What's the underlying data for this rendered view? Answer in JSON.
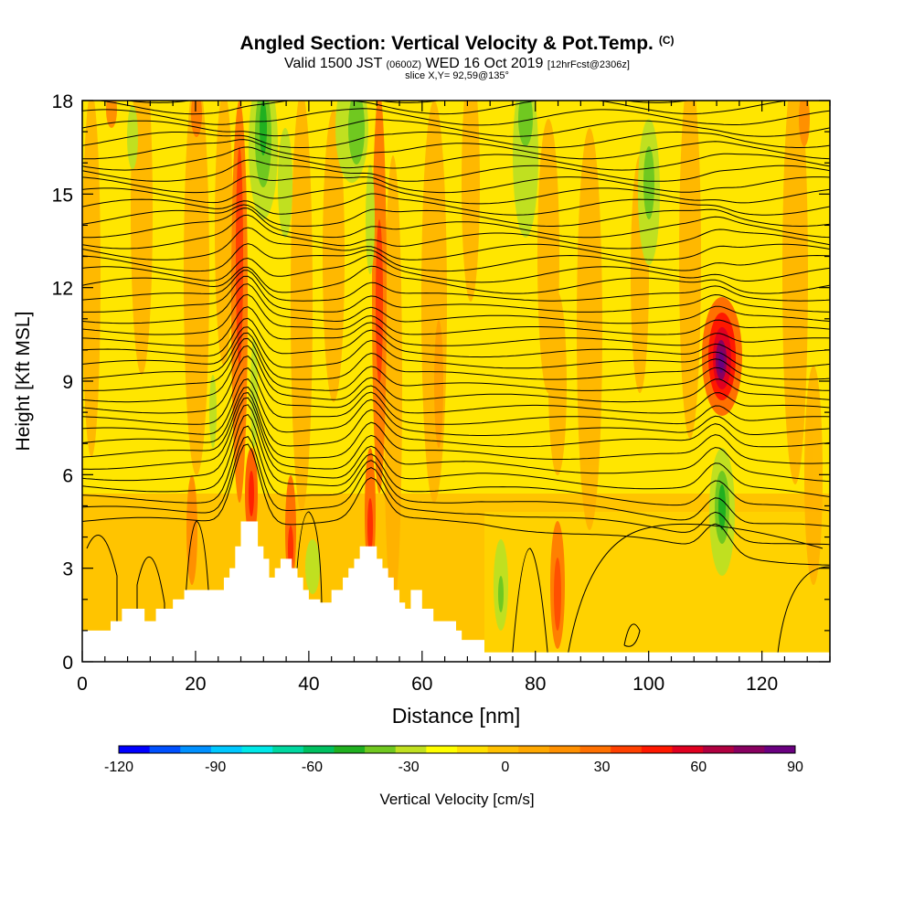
{
  "header": {
    "title": "Angled Section: Vertical Velocity & Pot.Temp.",
    "title_tag": "(C)",
    "valid_prefix": "Valid 1500 JST",
    "valid_utc": "(0600Z)",
    "valid_date": "WED 16 Oct 2019",
    "forecast": "[12hrFcst@2306z]",
    "slice": "slice X,Y= 92,59@135°"
  },
  "chart_data": {
    "type": "heatmap",
    "xlabel": "Distance [nm]",
    "ylabel": "Height [Kft MSL]",
    "xlim": [
      0,
      132
    ],
    "ylim": [
      0,
      18
    ],
    "x_ticks": [
      0,
      20,
      40,
      60,
      80,
      100,
      120
    ],
    "y_ticks": [
      0,
      3,
      6,
      9,
      12,
      15,
      18
    ],
    "colorbar": {
      "label": "Vertical Velocity [cm/s]",
      "min": -120,
      "max": 90,
      "tick_values": [
        -120,
        -90,
        -60,
        -30,
        0,
        30,
        60,
        90
      ],
      "tick_labels": [
        "-120",
        "-90",
        "-60",
        "-30",
        "0",
        "30",
        "60",
        "90"
      ],
      "colors": [
        "#0000ff",
        "#0050ff",
        "#0090ff",
        "#00c8ff",
        "#00e8e8",
        "#00d8a0",
        "#00c060",
        "#20b020",
        "#70c820",
        "#c0e020",
        "#ffff00",
        "#ffe000",
        "#ffc000",
        "#ffa800",
        "#ff9000",
        "#ff7000",
        "#ff4000",
        "#ff1800",
        "#e00020",
        "#b00040",
        "#880060",
        "#6a0080"
      ]
    },
    "terrain_kft": [
      [
        0,
        1.0
      ],
      [
        5,
        1.0
      ],
      [
        5,
        1.3
      ],
      [
        7,
        1.3
      ],
      [
        7,
        1.7
      ],
      [
        11,
        1.7
      ],
      [
        11,
        1.3
      ],
      [
        13,
        1.3
      ],
      [
        13,
        1.7
      ],
      [
        16,
        1.7
      ],
      [
        16,
        2.0
      ],
      [
        18,
        2.0
      ],
      [
        18,
        2.3
      ],
      [
        25,
        2.3
      ],
      [
        25,
        2.7
      ],
      [
        26,
        2.7
      ],
      [
        26,
        3.0
      ],
      [
        27,
        3.0
      ],
      [
        27,
        3.7
      ],
      [
        28,
        3.7
      ],
      [
        28,
        4.5
      ],
      [
        31,
        4.5
      ],
      [
        31,
        3.7
      ],
      [
        32,
        3.7
      ],
      [
        32,
        3.3
      ],
      [
        33,
        3.3
      ],
      [
        33,
        2.7
      ],
      [
        34,
        2.7
      ],
      [
        34,
        3.0
      ],
      [
        35,
        3.0
      ],
      [
        35,
        3.3
      ],
      [
        37,
        3.3
      ],
      [
        37,
        3.0
      ],
      [
        38,
        3.0
      ],
      [
        38,
        2.7
      ],
      [
        39,
        2.7
      ],
      [
        39,
        2.3
      ],
      [
        40,
        2.3
      ],
      [
        40,
        2.0
      ],
      [
        42,
        2.0
      ],
      [
        42,
        1.9
      ],
      [
        44,
        1.9
      ],
      [
        44,
        2.3
      ],
      [
        46,
        2.3
      ],
      [
        46,
        2.7
      ],
      [
        47,
        2.7
      ],
      [
        47,
        3.0
      ],
      [
        48,
        3.0
      ],
      [
        48,
        3.3
      ],
      [
        49,
        3.3
      ],
      [
        49,
        3.7
      ],
      [
        52,
        3.7
      ],
      [
        52,
        3.3
      ],
      [
        53,
        3.3
      ],
      [
        53,
        3.0
      ],
      [
        54,
        3.0
      ],
      [
        54,
        2.7
      ],
      [
        55,
        2.7
      ],
      [
        55,
        2.3
      ],
      [
        56,
        2.3
      ],
      [
        56,
        1.9
      ],
      [
        57,
        1.9
      ],
      [
        57,
        1.7
      ],
      [
        58,
        1.7
      ],
      [
        58,
        2.3
      ],
      [
        60,
        2.3
      ],
      [
        60,
        1.7
      ],
      [
        62,
        1.7
      ],
      [
        62,
        1.3
      ],
      [
        66,
        1.3
      ],
      [
        66,
        1.0
      ],
      [
        67,
        1.0
      ],
      [
        67,
        0.7
      ],
      [
        71,
        0.7
      ],
      [
        71,
        0.3
      ],
      [
        132,
        0.3
      ]
    ]
  }
}
